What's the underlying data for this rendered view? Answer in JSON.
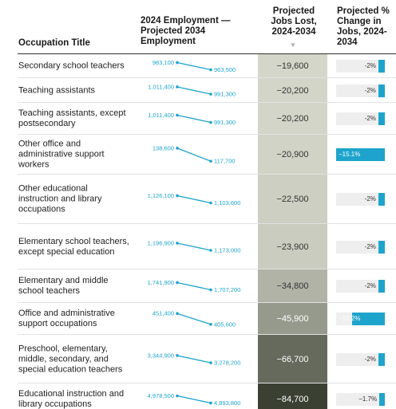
{
  "header": {
    "occupation": "Occupation Title",
    "employment": "2024 Employment — Projected 2034 Employment",
    "jobs_lost": "Projected Jobs Lost, 2024-2034",
    "pct_change": "Projected % Change in Jobs, 2024-2034",
    "sort_icon": "sort-down-icon"
  },
  "colors": {
    "accent": "#1ea4cc",
    "pct_track": "#eeeeee",
    "heat_light": "#d4d6c9",
    "heat_dark": "#3a4133"
  },
  "chart_data": {
    "type": "table",
    "columns": [
      "Occupation Title",
      "2024 Employment — Projected 2034 Employment",
      "Projected Jobs Lost, 2024-2034",
      "Projected % Change in Jobs, 2024-2034"
    ],
    "rows": [
      {
        "occupation": "Secondary school teachers",
        "emp_2024": 983100,
        "emp_2034": 963500,
        "emp_2024_label": "983,100",
        "emp_2034_label": "963,500",
        "jobs_lost": -19600,
        "jobs_lost_label": "−19,600",
        "pct": -2.0,
        "pct_label": "-2%"
      },
      {
        "occupation": "Teaching assistants",
        "emp_2024": 1011400,
        "emp_2034": 991300,
        "emp_2024_label": "1,011,400",
        "emp_2034_label": "991,300",
        "jobs_lost": -20200,
        "jobs_lost_label": "−20,200",
        "pct": -2.0,
        "pct_label": "-2%"
      },
      {
        "occupation": "Teaching assistants, except postsecondary",
        "emp_2024": 1011400,
        "emp_2034": 991300,
        "emp_2024_label": "1,011,400",
        "emp_2034_label": "991,300",
        "jobs_lost": -20200,
        "jobs_lost_label": "−20,200",
        "pct": -2.0,
        "pct_label": "-2%"
      },
      {
        "occupation": "Other office and administrative support workers",
        "emp_2024": 138600,
        "emp_2034": 117700,
        "emp_2024_label": "138,600",
        "emp_2034_label": "117,700",
        "jobs_lost": -20900,
        "jobs_lost_label": "−20,900",
        "pct": -15.1,
        "pct_label": "−15.1%"
      },
      {
        "occupation": "Other educational instruction and library occupations",
        "emp_2024": 1126100,
        "emp_2034": 1103600,
        "emp_2024_label": "1,126,100",
        "emp_2034_label": "1,103,600",
        "jobs_lost": -22500,
        "jobs_lost_label": "−22,500",
        "pct": -2.0,
        "pct_label": "-2%"
      },
      {
        "occupation": "Elementary school teachers, except special education",
        "emp_2024": 1196900,
        "emp_2034": 1173000,
        "emp_2024_label": "1,196,900",
        "emp_2034_label": "1,173,000",
        "jobs_lost": -23900,
        "jobs_lost_label": "−23,900",
        "pct": -2.0,
        "pct_label": "-2%"
      },
      {
        "occupation": "Elementary and middle school teachers",
        "emp_2024": 1741900,
        "emp_2034": 1707200,
        "emp_2024_label": "1,741,900",
        "emp_2034_label": "1,707,200",
        "jobs_lost": -34800,
        "jobs_lost_label": "−34,800",
        "pct": -2.0,
        "pct_label": "-2%"
      },
      {
        "occupation": "Office and administrative support occupations",
        "emp_2024": 451400,
        "emp_2034": 405600,
        "emp_2024_label": "451,400",
        "emp_2034_label": "405,600",
        "jobs_lost": -45900,
        "jobs_lost_label": "−45,900",
        "pct": -10.2,
        "pct_label": "−10.2%"
      },
      {
        "occupation": "Preschool, elementary, middle, secondary, and special education teachers",
        "emp_2024": 3344900,
        "emp_2034": 3278200,
        "emp_2024_label": "3,344,900",
        "emp_2034_label": "3,278,200",
        "jobs_lost": -66700,
        "jobs_lost_label": "−66,700",
        "pct": -2.0,
        "pct_label": "-2%"
      },
      {
        "occupation": "Educational instruction and library occupations",
        "emp_2024": 4978500,
        "emp_2034": 4893800,
        "emp_2024_label": "4,978,500",
        "emp_2034_label": "4,893,800",
        "jobs_lost": -84700,
        "jobs_lost_label": "−84,700",
        "pct": -1.7,
        "pct_label": "−1.7%"
      }
    ]
  }
}
